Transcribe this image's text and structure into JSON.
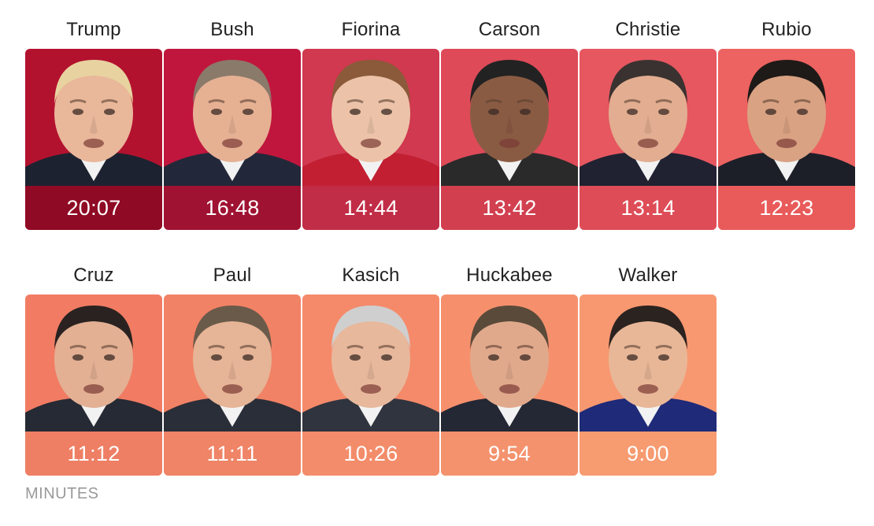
{
  "chart_data": {
    "type": "bar",
    "categories": [
      "Trump",
      "Bush",
      "Fiorina",
      "Carson",
      "Christie",
      "Rubio",
      "Cruz",
      "Paul",
      "Kasich",
      "Huckabee",
      "Walker"
    ],
    "labels": [
      "20:07",
      "16:48",
      "14:44",
      "13:42",
      "13:14",
      "12:23",
      "11:12",
      "11:11",
      "10:26",
      "9:54",
      "9:00"
    ],
    "values": [
      20.12,
      16.8,
      14.73,
      13.7,
      13.23,
      12.38,
      11.2,
      11.18,
      10.43,
      9.9,
      9.0
    ],
    "colors": {
      "card": [
        "#b3122f",
        "#c0163d",
        "#d0394f",
        "#de4a58",
        "#e65760",
        "#ec6361",
        "#f17c63",
        "#f28265",
        "#f58a6a",
        "#f6906c",
        "#f89870"
      ],
      "time": [
        "#8f0a24",
        "#a01232",
        "#c12d47",
        "#d2404f",
        "#de4d57",
        "#e85b5a",
        "#ee7f64",
        "#ef8466",
        "#f38c6a",
        "#f4926d",
        "#f79b71"
      ]
    },
    "unit_label": "MINUTES"
  }
}
